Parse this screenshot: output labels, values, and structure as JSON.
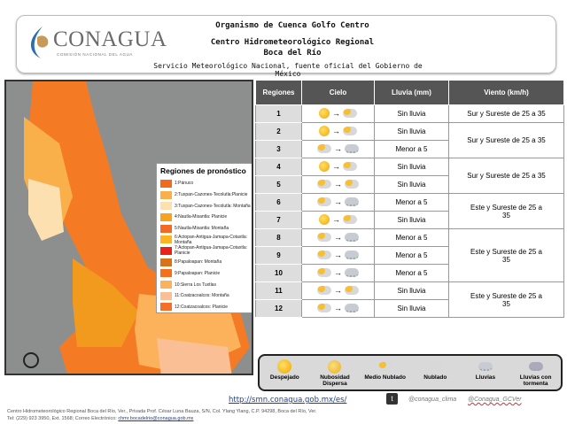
{
  "header": {
    "logo": "CONAGUA",
    "logo_sub": "COMISIÓN NACIONAL DEL AGUA",
    "line1": "Organismo de Cuenca Golfo Centro",
    "line2": "Centro Hidrometeorológico Regional",
    "line3": "Boca del Río",
    "line4": "Servicio Meteorológico Nacional, fuente oficial del Gobierno de México"
  },
  "legend": {
    "title": "Regiones de pronóstico",
    "items": [
      {
        "label": "1:Pánuco",
        "color": "#f26a1b"
      },
      {
        "label": "2:Tuxpan-Cazones-Tecolutla:Planicie",
        "color": "#f9b04a"
      },
      {
        "label": "3:Tuxpan-Cazones-Tecolutla: Montaña",
        "color": "#fde0b0"
      },
      {
        "label": "4:Nautla-Misantla: Planicie",
        "color": "#f9a21e"
      },
      {
        "label": "5:Nautla-Misantla: Montaña",
        "color": "#f46a25"
      },
      {
        "label": "6:Actopan-Antigua-Jamapa-Cotaxtla: Montaña",
        "color": "#fbb51d"
      },
      {
        "label": "7:Actopan-Antigua-Jamapa-Cotaxtla: Planicie",
        "color": "#e8231c"
      },
      {
        "label": "8:Papaloapan: Montaña",
        "color": "#d8731a"
      },
      {
        "label": "9:Papaloapan: Planicie",
        "color": "#f5701e"
      },
      {
        "label": "10:Sierra Los Tuxtlas",
        "color": "#fbb25a"
      },
      {
        "label": "11:Coatzacoalcos: Montaña",
        "color": "#fbbf95"
      },
      {
        "label": "12:Coatzacoalcos: Planicie",
        "color": "#f4702a"
      }
    ]
  },
  "table": {
    "headers": [
      "Regiones",
      "Cielo",
      "Lluvia (mm)",
      "Viento (km/h)"
    ],
    "rows": [
      {
        "region": "1",
        "from": "despejado",
        "to": "medio-nublado",
        "rain": "Sin lluvia"
      },
      {
        "region": "2",
        "from": "despejado",
        "to": "medio-nublado",
        "rain": "Sin lluvia"
      },
      {
        "region": "3",
        "from": "medio-nublado",
        "to": "lluvias",
        "rain": "Menor a 5"
      },
      {
        "region": "4",
        "from": "despejado",
        "to": "medio-nublado",
        "rain": "Sin lluvia"
      },
      {
        "region": "5",
        "from": "medio-nublado",
        "to": "medio-nublado",
        "rain": "Sin lluvia"
      },
      {
        "region": "6",
        "from": "medio-nublado",
        "to": "lluvias",
        "rain": "Menor a 5"
      },
      {
        "region": "7",
        "from": "despejado",
        "to": "medio-nublado",
        "rain": "Sin lluvia"
      },
      {
        "region": "8",
        "from": "medio-nublado",
        "to": "lluvias",
        "rain": "Menor a 5"
      },
      {
        "region": "9",
        "from": "medio-nublado",
        "to": "lluvias",
        "rain": "Menor a 5"
      },
      {
        "region": "10",
        "from": "medio-nublado",
        "to": "lluvias",
        "rain": "Menor a 5"
      },
      {
        "region": "11",
        "from": "medio-nublado",
        "to": "medio-nublado",
        "rain": "Sin lluvia"
      },
      {
        "region": "12",
        "from": "medio-nublado",
        "to": "lluvias",
        "rain": "Sin lluvia"
      }
    ],
    "wind": [
      "Sur y Sureste de 25 a 35",
      "Sur y Sureste de 25 a 35",
      "Sur y Sureste de 25 a 35",
      "Este y Sureste de 25 a 35",
      "Este y Sureste de 25 a 35",
      "Este y Sureste de 25 a 35"
    ]
  },
  "sky_legend": [
    "Despejado",
    "Nubosidad Dispersa",
    "Medio Nublado",
    "Nublado",
    "Lluvias",
    "Lluvias con tormenta"
  ],
  "footer": {
    "url": "http://smn.conagua.gob.mx/es/",
    "twitter1": "@conagua_clima",
    "twitter2": "@Conagua_GCVer",
    "address": "Centro Hidrometeorológico Regional Boca del Río, Ver., Privada Prof. César Luna Bauza, S/N, Col. Ylang Ylang, C.P. 94298, Boca del Río, Ver.",
    "contact": "Tel: (229) 923 3950, Ext. 1568; Correo Electrónico:",
    "email": "chmr.bocadelrio@conagua.gob.mx"
  }
}
